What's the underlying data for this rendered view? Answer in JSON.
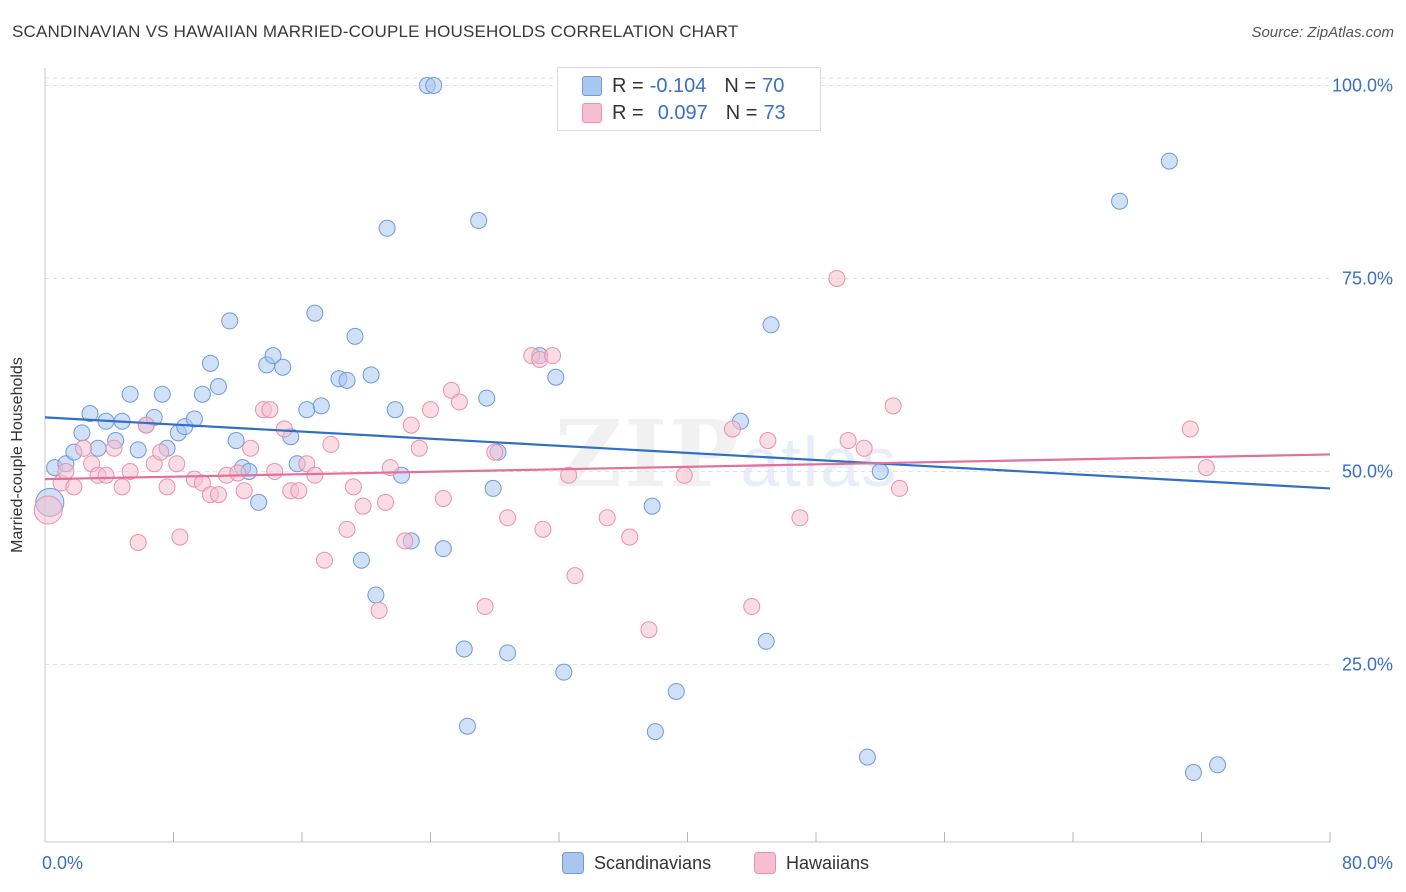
{
  "header": {
    "title": "SCANDINAVIAN VS HAWAIIAN MARRIED-COUPLE HOUSEHOLDS CORRELATION CHART",
    "source": "Source: ZipAtlas.com"
  },
  "watermark": {
    "zip": "ZIP",
    "atlas": "atlas"
  },
  "legend": {
    "rows": [
      {
        "r_label": "R = ",
        "r_value": "-0.104",
        "n_label": "N = ",
        "n_value": "70"
      },
      {
        "r_label": "R = ",
        "r_value": "0.097",
        "n_label": "N = ",
        "n_value": "73"
      }
    ]
  },
  "bottom_legend": {
    "items": [
      "Scandinavians",
      "Hawaiians"
    ]
  },
  "colors": {
    "blue_fill": "#a9c6ee",
    "blue_stroke": "#6f9ad6",
    "blue_line": "#2f6fc9",
    "pink_fill": "#f5bfd0",
    "pink_stroke": "#e891ad",
    "pink_line": "#e2709a",
    "tick_label": "#3a6fc4",
    "grid": "#e2e2e2"
  },
  "chart_data": {
    "type": "scatter",
    "title": "SCANDINAVIAN VS HAWAIIAN MARRIED-COUPLE HOUSEHOLDS CORRELATION CHART",
    "xlabel": "",
    "ylabel": "Married-couple Households",
    "xlim": [
      0,
      80
    ],
    "ylim": [
      2,
      102
    ],
    "x_tick_labels": [
      "0.0%",
      "80.0%"
    ],
    "y_ticks": [
      25,
      50,
      75,
      100
    ],
    "y_tick_labels": [
      "25.0%",
      "50.0%",
      "75.0%",
      "100.0%"
    ],
    "grid": true,
    "legend_position": "top-center",
    "series": [
      {
        "name": "Scandinavians",
        "r": -0.104,
        "n": 70,
        "trend": [
          [
            0,
            57.0
          ],
          [
            80,
            47.8
          ]
        ],
        "points": [
          [
            0.3,
            46.0
          ],
          [
            0.6,
            50.5
          ],
          [
            1.3,
            51.0
          ],
          [
            1.8,
            52.5
          ],
          [
            2.3,
            55.0
          ],
          [
            2.8,
            57.5
          ],
          [
            3.3,
            53.0
          ],
          [
            3.8,
            56.5
          ],
          [
            4.4,
            54.0
          ],
          [
            4.8,
            56.5
          ],
          [
            5.3,
            60.0
          ],
          [
            5.8,
            52.8
          ],
          [
            6.3,
            56.0
          ],
          [
            6.8,
            57.0
          ],
          [
            7.3,
            60.0
          ],
          [
            7.6,
            53.0
          ],
          [
            8.3,
            55.0
          ],
          [
            8.7,
            55.8
          ],
          [
            9.3,
            56.8
          ],
          [
            9.8,
            60.0
          ],
          [
            10.3,
            64.0
          ],
          [
            10.8,
            61.0
          ],
          [
            11.5,
            69.5
          ],
          [
            11.9,
            54.0
          ],
          [
            12.3,
            50.5
          ],
          [
            12.7,
            50.0
          ],
          [
            13.3,
            46.0
          ],
          [
            13.8,
            63.8
          ],
          [
            14.2,
            65.0
          ],
          [
            14.8,
            63.5
          ],
          [
            15.3,
            54.5
          ],
          [
            15.7,
            51.0
          ],
          [
            16.3,
            58.0
          ],
          [
            16.8,
            70.5
          ],
          [
            17.2,
            58.5
          ],
          [
            18.3,
            62.0
          ],
          [
            18.8,
            61.8
          ],
          [
            19.3,
            67.5
          ],
          [
            19.7,
            38.5
          ],
          [
            20.3,
            62.5
          ],
          [
            20.6,
            34.0
          ],
          [
            21.3,
            81.5
          ],
          [
            21.8,
            58.0
          ],
          [
            22.2,
            49.5
          ],
          [
            22.8,
            41.0
          ],
          [
            23.8,
            100.0
          ],
          [
            24.2,
            100.0
          ],
          [
            24.8,
            40.0
          ],
          [
            26.1,
            27.0
          ],
          [
            26.3,
            17.0
          ],
          [
            27.0,
            82.5
          ],
          [
            27.5,
            59.5
          ],
          [
            27.9,
            47.8
          ],
          [
            28.2,
            52.5
          ],
          [
            28.8,
            26.5
          ],
          [
            30.8,
            65.0
          ],
          [
            31.8,
            62.2
          ],
          [
            32.3,
            24.0
          ],
          [
            37.8,
            45.5
          ],
          [
            38.0,
            16.3
          ],
          [
            39.3,
            21.5
          ],
          [
            43.3,
            56.5
          ],
          [
            44.9,
            28.0
          ],
          [
            45.2,
            69.0
          ],
          [
            51.2,
            13.0
          ],
          [
            52.0,
            50.0
          ],
          [
            66.9,
            85.0
          ],
          [
            70.0,
            90.2
          ],
          [
            71.5,
            11.0
          ],
          [
            73.0,
            12.0
          ]
        ]
      },
      {
        "name": "Hawaiians",
        "r": 0.097,
        "n": 73,
        "trend": [
          [
            0,
            49.0
          ],
          [
            80,
            52.2
          ]
        ],
        "points": [
          [
            0.2,
            45.0
          ],
          [
            1.0,
            48.5
          ],
          [
            1.3,
            50.0
          ],
          [
            1.8,
            48.0
          ],
          [
            2.4,
            53.0
          ],
          [
            2.9,
            51.0
          ],
          [
            3.3,
            49.5
          ],
          [
            3.8,
            49.5
          ],
          [
            4.3,
            53.0
          ],
          [
            4.8,
            48.0
          ],
          [
            5.3,
            50.0
          ],
          [
            5.8,
            40.8
          ],
          [
            6.3,
            56.0
          ],
          [
            6.8,
            51.0
          ],
          [
            7.2,
            52.5
          ],
          [
            7.6,
            48.0
          ],
          [
            8.2,
            51.0
          ],
          [
            8.4,
            41.5
          ],
          [
            9.3,
            49.0
          ],
          [
            9.8,
            48.5
          ],
          [
            10.3,
            47.0
          ],
          [
            10.8,
            47.0
          ],
          [
            11.3,
            49.5
          ],
          [
            12.0,
            49.8
          ],
          [
            12.4,
            47.5
          ],
          [
            12.8,
            53.0
          ],
          [
            13.6,
            58.0
          ],
          [
            14.0,
            58.0
          ],
          [
            14.3,
            50.0
          ],
          [
            14.9,
            55.5
          ],
          [
            15.3,
            47.5
          ],
          [
            15.8,
            47.5
          ],
          [
            16.3,
            51.0
          ],
          [
            16.8,
            49.5
          ],
          [
            17.4,
            38.5
          ],
          [
            17.8,
            53.5
          ],
          [
            18.8,
            42.5
          ],
          [
            19.2,
            48.0
          ],
          [
            19.8,
            45.5
          ],
          [
            20.8,
            32.0
          ],
          [
            21.2,
            46.0
          ],
          [
            21.5,
            50.5
          ],
          [
            22.4,
            41.0
          ],
          [
            22.8,
            56.0
          ],
          [
            23.3,
            53.0
          ],
          [
            24.0,
            58.0
          ],
          [
            24.8,
            46.5
          ],
          [
            25.3,
            60.5
          ],
          [
            25.8,
            59.0
          ],
          [
            27.4,
            32.5
          ],
          [
            28.0,
            52.5
          ],
          [
            28.8,
            44.0
          ],
          [
            30.3,
            65.0
          ],
          [
            30.8,
            64.5
          ],
          [
            31.0,
            42.5
          ],
          [
            31.6,
            65.0
          ],
          [
            32.6,
            49.5
          ],
          [
            33.0,
            36.5
          ],
          [
            35.0,
            44.0
          ],
          [
            36.4,
            41.5
          ],
          [
            37.6,
            29.5
          ],
          [
            39.8,
            49.5
          ],
          [
            42.8,
            55.5
          ],
          [
            44.0,
            32.5
          ],
          [
            45.0,
            54.0
          ],
          [
            47.0,
            44.0
          ],
          [
            49.3,
            75.0
          ],
          [
            50.0,
            54.0
          ],
          [
            51.0,
            53.0
          ],
          [
            52.8,
            58.5
          ],
          [
            53.2,
            47.8
          ],
          [
            71.3,
            55.5
          ],
          [
            72.3,
            50.5
          ]
        ]
      }
    ]
  }
}
